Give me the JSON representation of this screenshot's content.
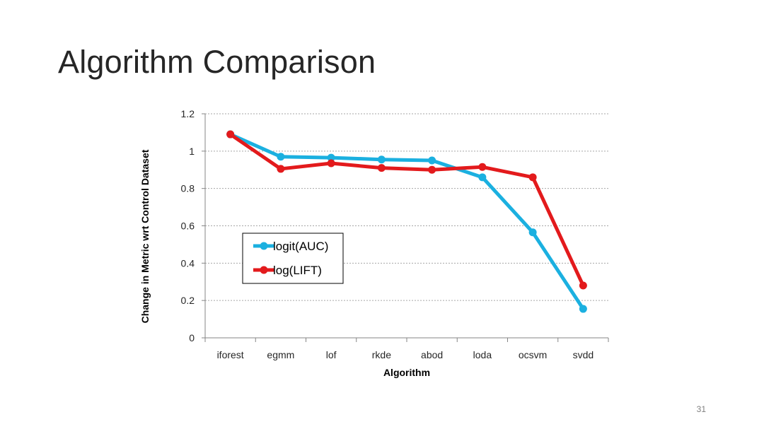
{
  "slide": {
    "title": "Algorithm Comparison",
    "page_number": "31"
  },
  "chart_data": {
    "type": "line",
    "categories": [
      "iforest",
      "egmm",
      "lof",
      "rkde",
      "abod",
      "loda",
      "ocsvm",
      "svdd"
    ],
    "series": [
      {
        "name": "logit(AUC)",
        "color": "#1bb0e0",
        "values": [
          1.09,
          0.97,
          0.965,
          0.955,
          0.95,
          0.86,
          0.565,
          0.155
        ]
      },
      {
        "name": "log(LIFT)",
        "color": "#e31a1c",
        "values": [
          1.09,
          0.905,
          0.935,
          0.91,
          0.9,
          0.915,
          0.86,
          0.28
        ]
      }
    ],
    "xlabel": "Algorithm",
    "ylabel": "Change in Metric wrt Control Dataset",
    "ylim": [
      0,
      1.2
    ],
    "yticks": [
      "0",
      "0.2",
      "0.4",
      "0.6",
      "0.8",
      "1",
      "1.2"
    ],
    "grid": true,
    "legend_position": "left-middle"
  }
}
